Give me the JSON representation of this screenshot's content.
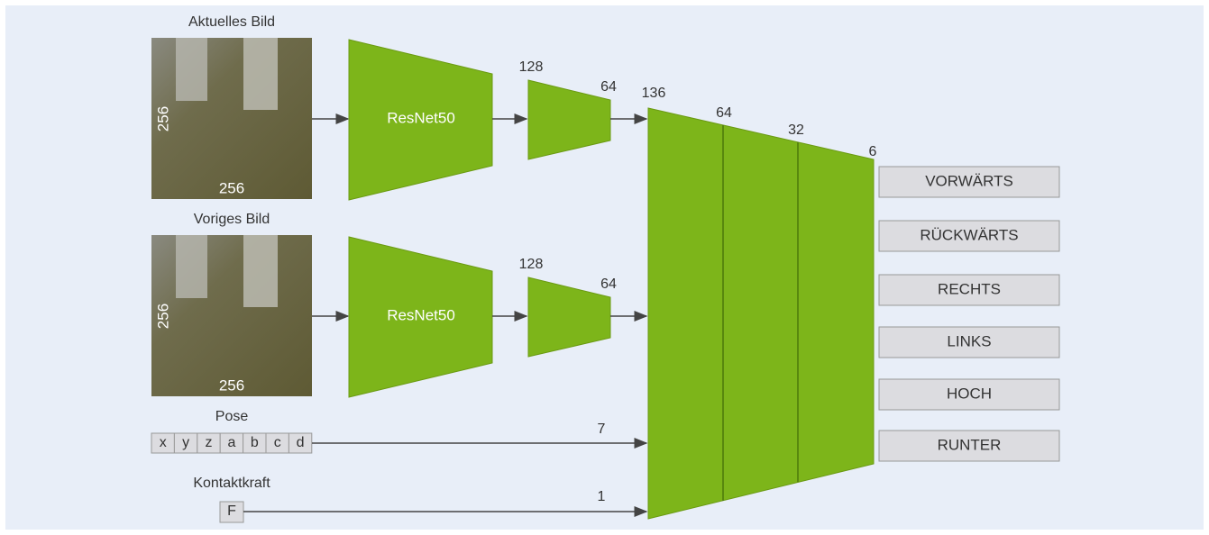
{
  "branches": [
    {
      "image_label": "Aktuelles Bild",
      "image_height": 256,
      "image_width": 256,
      "encoder": "ResNet50",
      "fc_in": 128,
      "fc_out": 64
    },
    {
      "image_label": "Voriges Bild",
      "image_height": 256,
      "image_width": 256,
      "encoder": "ResNet50",
      "fc_in": 128,
      "fc_out": 64
    }
  ],
  "pose": {
    "label": "Pose",
    "fields": [
      "x",
      "y",
      "z",
      "a",
      "b",
      "c",
      "d"
    ],
    "dim": 7
  },
  "force": {
    "label": "Kontaktkraft",
    "field": "F",
    "dim": 1
  },
  "fusion": {
    "layers": [
      136,
      64,
      32,
      6
    ]
  },
  "outputs": [
    "VORWÄRTS",
    "RÜCKWÄRTS",
    "RECHTS",
    "LINKS",
    "HOCH",
    "RUNTER"
  ]
}
